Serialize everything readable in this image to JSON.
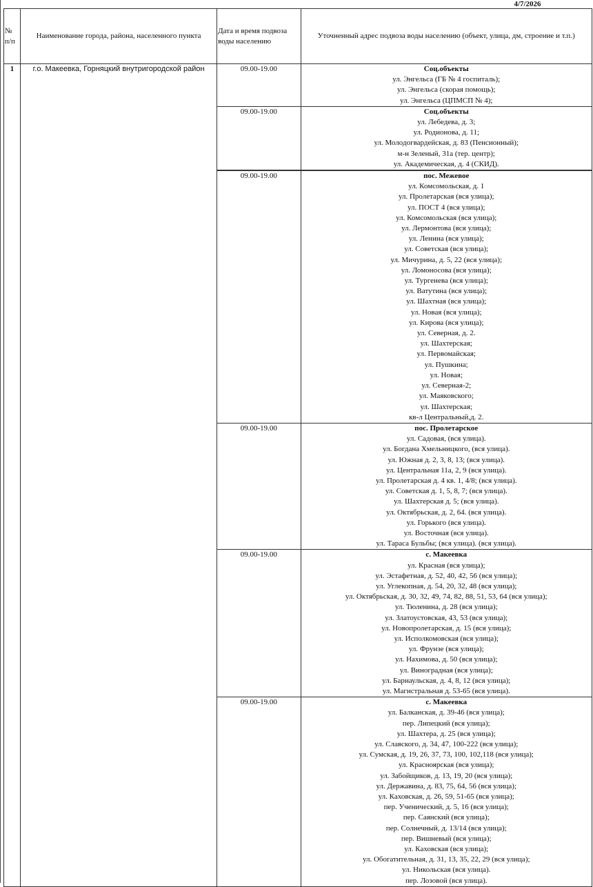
{
  "date": "4/7/2026",
  "headers": {
    "num": "№ п/п",
    "name": "Наименование города, района, населенного пункта",
    "datetime": "Дата и время подвоза воды населению",
    "address": "Уточненный адрес подвоза воды населению (объект, улица, дм, строение и т.п.)"
  },
  "row": {
    "num": "1",
    "name": "г.о. Макеевка, Горняцкий внутригородской район"
  },
  "groups": [
    {
      "time": "09.00-19.00",
      "title": "Соц.объекты",
      "lines": [
        "ул. Энгельса (ГБ № 4 госпиталь);",
        "ул. Энгельса (скорая помощь);",
        "ул. Энгельса (ЦПМСП № 4);"
      ]
    },
    {
      "time": "09.00-19.00",
      "title": "Соц.объекты",
      "lines": [
        "ул. Лебедева, д. 3;",
        "ул. Родионова, д. 11;",
        "ул. Молодогвардейская, д. 83 (Пенсионный);",
        "м-н Зеленый, 31а (тер. центр);",
        "ул. Академическая, д. 4 (СКИД)."
      ]
    },
    {
      "time": "09.00-19.00",
      "title": "пос. Межевое",
      "lines": [
        "ул. Комсомольская, д. 1",
        "ул. Пролетарская (вся улица);",
        "ул. ПОСТ 4 (вся улица);",
        "ул. Комсомольская (вся улица);",
        "ул. Лермонтова (вся улица);",
        "ул. Ленина (вся улица);",
        "ул. Советская (вся улица);",
        "ул. Мичурина, д. 5, 22 (вся улица);",
        "ул. Ломоносова (вся улица);",
        "ул. Тургенева (вся улица);",
        "ул. Ватутина (вся улица);",
        "ул. Шахтная (вся улица);",
        "ул. Новая (вся улица);",
        "ул. Кирова (вся улица);",
        "ул. Северная, д. 2.",
        "ул. Шахтерская;",
        "ул. Первомайская;",
        "ул. Пушкина;",
        "ул. Новая;",
        "ул. Северная-2;",
        "ул. Маяковского;",
        "ул. Шахтерская;",
        "кв-л Центральный,д. 2."
      ]
    },
    {
      "time": "09.00-19.00",
      "title": "пос. Пролетарское",
      "lines": [
        "ул. Садовая, (вся улица).",
        "ул. Богдана Хмельницкого, (вся улица).",
        "ул. Южная д. 2, 3, 8, 13; (вся улица).",
        "ул. Центральная 11а, 2, 9 (вся улица).",
        "ул. Пролетарская д. 4 кв. 1, 4/8; (вся улица).",
        "ул. Советская д. 1, 5, 8, 7; (вся улица).",
        "ул. Шахтерская д. 5; (вся улица).",
        "ул. Октябрьская, д. 2, 64. (вся улица).",
        "ул. Горького (вся улица).",
        "ул. Восточная (вся улица).",
        "ул. Тараса Бульбы; (вся улица). (вся улица)."
      ]
    },
    {
      "time": "09.00-19.00",
      "title": "с. Макеевка",
      "lines": [
        "ул. Красная (вся улица);",
        "ул. Эстафетная, д. 52, 40, 42, 56 (вся улица);",
        "ул. Углекопная, д. 54, 20, 32, 48 (вся улица);",
        "ул. Октябрьская, д. 30, 32, 49, 74, 82, 88, 51, 53, 64 (вся улица);",
        "ул. Тюленина, д. 28 (вся улица);",
        "ул. Златоустовская, 43, 53 (вся улица);",
        "ул. Новопролетарская, д. 15 (вся улица);",
        "ул. Исполкомовская (вся улица);",
        "ул. Фрунзе (вся улица);",
        "ул. Нахимова, д. 50 (вся улица);",
        "ул. Виноградная (вся улица);",
        "ул. Барнаульская, д. 4, 8, 12 (вся улица);",
        "ул. Магистральная д. 53-65 (вся улица)."
      ]
    },
    {
      "time": "09.00-19.00",
      "title": "с. Макеевка",
      "lines": [
        "ул. Балканская, д. 39-46 (вся улица);",
        "пер. Липецкий (вся улица);",
        "ул. Шахтера, д. 25 (вся улица);",
        "ул. Славского, д. 34, 47, 100-222 (вся улица);",
        "ул. Сумская, д. 19, 26, 37, 73, 100, 102,118 (вся улица);",
        "ул. Красноярская (вся улица);",
        "ул. Забойщиков, д. 13, 19, 20 (вся улица);",
        "ул. Державина, д. 83, 75, 64, 56 (вся улица);",
        "ул. Каховская, д. 26, 59, 51-65 (вся улица);",
        "пер. Ученический, д. 5, 16 (вся улица);",
        "пер. Саянский (вся улица);",
        "пер. Солнечный, д. 13/14 (вся улица);",
        "пер. Вишневый (вся улица);",
        "ул. Каховская (вся улица);",
        "ул. Обогатительная, д. 31, 13, 35, 22, 29 (вся улица);",
        "ул. Никольская (вся улица).",
        "пер. Лозовой (вся улица)."
      ]
    }
  ]
}
